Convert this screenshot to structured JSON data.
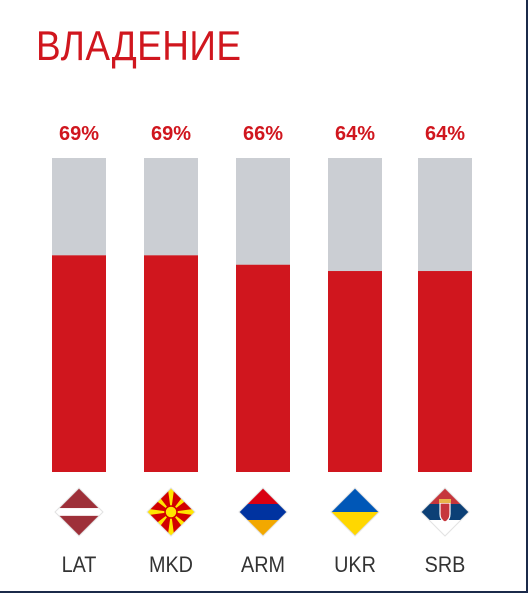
{
  "chart_data": {
    "type": "bar",
    "title": "ВЛАДЕНИЕ",
    "categories": [
      "LAT",
      "MKD",
      "ARM",
      "UKR",
      "SRB"
    ],
    "values": [
      69,
      69,
      66,
      64,
      64
    ],
    "value_labels": [
      "69%",
      "69%",
      "66%",
      "64%",
      "64%"
    ],
    "ylim": [
      0,
      100
    ],
    "stacked_remainder": true,
    "colors": {
      "fill": "#d0161e",
      "remainder": "#cbced3",
      "label": "#d0161e",
      "category": "#333333"
    },
    "flags": [
      {
        "country": "LAT",
        "icon": "latvia-flag-icon",
        "stripes": [
          "#9e3039",
          "#ffffff",
          "#9e3039"
        ]
      },
      {
        "country": "MKD",
        "icon": "north-macedonia-flag-icon",
        "stripes": [
          "#d20000",
          "#ffe600"
        ]
      },
      {
        "country": "ARM",
        "icon": "armenia-flag-icon",
        "stripes": [
          "#d90012",
          "#0033a0",
          "#f2a800"
        ]
      },
      {
        "country": "UKR",
        "icon": "ukraine-flag-icon",
        "stripes": [
          "#0057b7",
          "#ffd700"
        ]
      },
      {
        "country": "SRB",
        "icon": "serbia-flag-icon",
        "stripes": [
          "#c6363c",
          "#0c4076",
          "#ffffff"
        ]
      }
    ]
  }
}
